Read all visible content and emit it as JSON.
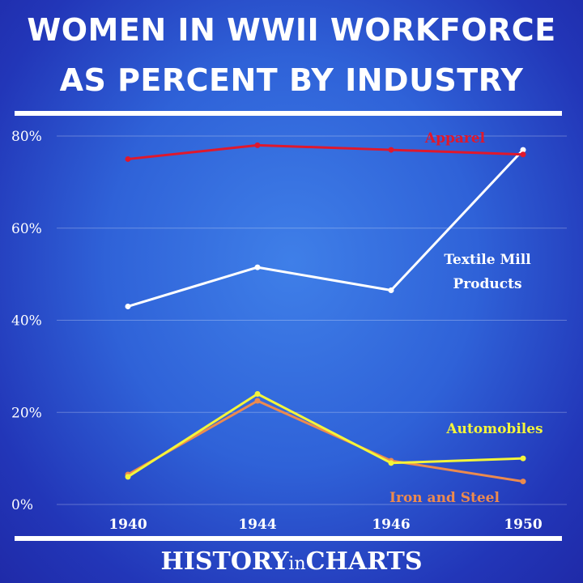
{
  "header": {
    "title_line1": "WOMEN IN WWII WORKFORCE",
    "title_line2": "AS PERCENT BY INDUSTRY"
  },
  "footer": {
    "brand_history": "HISTORY",
    "brand_in": "in",
    "brand_charts": "CHARTS"
  },
  "chart_data": {
    "type": "line",
    "x": [
      "1940",
      "1944",
      "1946",
      "1950"
    ],
    "ylim": [
      0,
      80
    ],
    "yticks": [
      "0%",
      "20%",
      "40%",
      "60%",
      "80%"
    ],
    "yticks_values": [
      0,
      20,
      40,
      60,
      80
    ],
    "grid": true,
    "series": [
      {
        "name": "Apparel",
        "values": [
          75,
          78,
          77,
          76
        ],
        "color": "#e0182c"
      },
      {
        "name": "Textile Mill Products",
        "label_lines": [
          "Textile Mill",
          "Products"
        ],
        "values": [
          43,
          51.5,
          46.5,
          77
        ],
        "color": "#ffffff"
      },
      {
        "name": "Automobiles",
        "values": [
          6,
          24,
          9,
          10
        ],
        "color": "#f4f53a"
      },
      {
        "name": "Iron and Steel",
        "values": [
          6.5,
          22.5,
          9.5,
          5
        ],
        "color": "#ec8a4e"
      }
    ]
  }
}
